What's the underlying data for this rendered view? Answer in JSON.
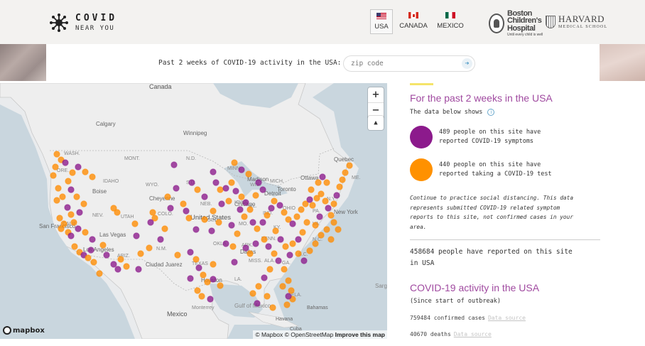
{
  "brand": {
    "title": "COVID",
    "subtitle": "NEAR YOU"
  },
  "countries": [
    {
      "label": "USA",
      "active": true
    },
    {
      "label": "CANADA",
      "active": false
    },
    {
      "label": "MEXICO",
      "active": false
    }
  ],
  "partners": {
    "bch_name_line1": "Boston",
    "bch_name_line2": "Children's",
    "bch_name_line3": "Hospital",
    "bch_tagline": "Until every child is well",
    "harvard_name": "HARVARD",
    "harvard_sub": "MEDICAL SCHOOL"
  },
  "search": {
    "label": "Past 2 weeks of COVID-19 activity in the USA:",
    "placeholder": "zip code",
    "submit_icon": "arrow-right-icon"
  },
  "map": {
    "labels": [
      "Canada",
      "Calgary",
      "Winnipeg",
      "Quebec",
      "Ottawa",
      "Toronto",
      "Chicago",
      "Detroit",
      "New York",
      "United States",
      "Las Vegas",
      "San Francisco",
      "Los Angeles",
      "Dallas",
      "Houston",
      "Ciudad Juarez",
      "Mexico",
      "Gulf of Mexico",
      "Bahamas",
      "Havana",
      "Cuba",
      "WASH.",
      "ORE.",
      "CALIF.",
      "NEV.",
      "ARIZ.",
      "N.M.",
      "TEXAS",
      "N.D.",
      "S.D.",
      "NEB.",
      "KAN.",
      "OKLA.",
      "COLO.",
      "WYO.",
      "MONT.",
      "IDAHO",
      "UTAH",
      "MINN.",
      "IOWA",
      "MO.",
      "WIS.",
      "ILL.",
      "IND.",
      "OHIO",
      "KY.",
      "TENN.",
      "ALA.",
      "MISS.",
      "LA.",
      "ARK.",
      "GA.",
      "FLA.",
      "S.C.",
      "N.C.",
      "VA.",
      "PA.",
      "N.Y.",
      "MICH.",
      "ME.",
      "Sargasso Sea",
      "Monterrey",
      "Madison",
      "Boise",
      "Cheyenne"
    ],
    "zoom_in": "+",
    "zoom_out": "−",
    "compass": "▲",
    "mapbox": "mapbox",
    "attribution_1": "© Mapbox",
    "attribution_2": "© OpenStreetMap",
    "attribution_3": "Improve this map",
    "colors": {
      "symptoms": "#8c1a8c",
      "tested": "#ff8c00",
      "water": "#c9d6de",
      "land": "#ececec"
    }
  },
  "sidebar": {
    "title": "For the past 2 weeks in the USA",
    "data_below": "The data below shows",
    "info_icon": "info-icon",
    "symptoms_line1": "489 people on this site have",
    "symptoms_line2": "reported COVID-19 symptoms",
    "tested_line1": "440 people on this site have",
    "tested_line2": "reported taking a COVID-19 test",
    "note_1": "Continue to practice social distancing. This data",
    "note_2": "represents submitted COVID-19 related symptom",
    "note_3": "reports to this site, not confirmed cases in your",
    "note_4": "area.",
    "total_line1": "458684 people have reported on this site",
    "total_line2": "in USA",
    "activity_title": "COVID-19 activity in the USA",
    "since": "(Since start of outbreak)",
    "confirmed": "759484 confirmed cases",
    "deaths": "40670 deaths",
    "source_link": "Data source",
    "colors": {
      "purple": "#8c1a8c",
      "orange": "#ff9100",
      "accent": "#f5e46a",
      "heading": "#a04aa0"
    }
  }
}
